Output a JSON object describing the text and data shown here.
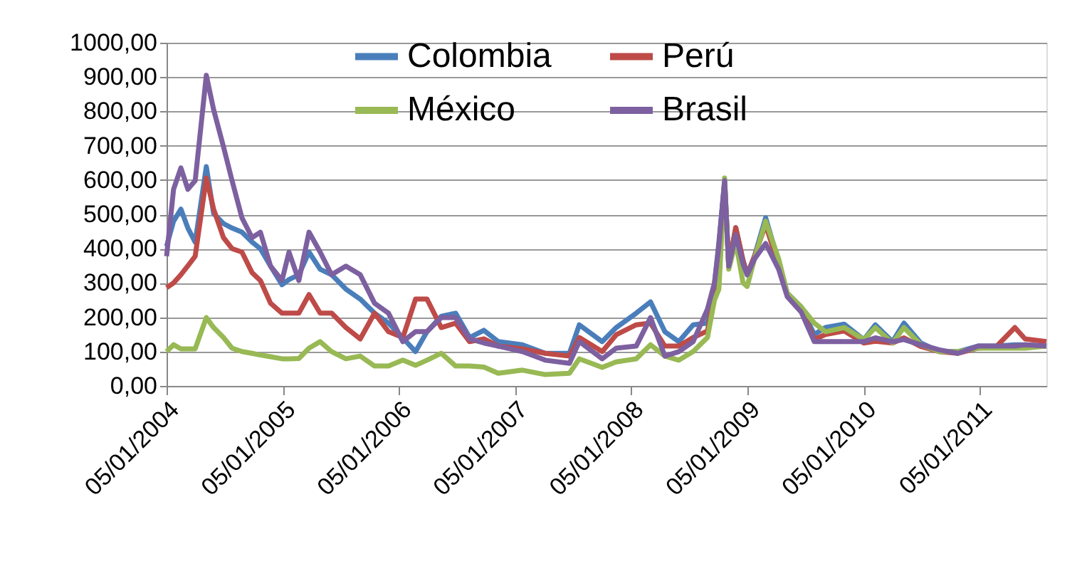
{
  "chart_data": {
    "type": "line",
    "x": [
      "2004-01-05",
      "2004-01-27",
      "2004-02-19",
      "2004-03-12",
      "2004-04-04",
      "2004-05-09",
      "2004-06-01",
      "2004-07-02",
      "2004-07-29",
      "2004-08-29",
      "2004-09-30",
      "2004-10-26",
      "2004-11-27",
      "2005-01-02",
      "2005-01-24",
      "2005-02-24",
      "2005-03-28",
      "2005-05-02",
      "2005-06-07",
      "2005-07-22",
      "2005-09-05",
      "2005-10-20",
      "2005-12-03",
      "2006-01-17",
      "2006-02-26",
      "2006-04-03",
      "2006-05-18",
      "2006-07-02",
      "2006-08-15",
      "2006-09-29",
      "2006-11-13",
      "2007-01-28",
      "2007-04-10",
      "2007-06-25",
      "2007-07-26",
      "2007-10-06",
      "2007-11-19",
      "2008-01-21",
      "2008-03-06",
      "2008-04-20",
      "2008-06-03",
      "2008-07-18",
      "2008-09-01",
      "2008-09-23",
      "2008-10-07",
      "2008-10-25",
      "2008-11-07",
      "2008-11-29",
      "2008-12-22",
      "2009-01-04",
      "2009-01-27",
      "2009-03-03",
      "2009-04-13",
      "2009-05-10",
      "2009-06-23",
      "2009-08-03",
      "2009-09-07",
      "2009-11-05",
      "2010-01-06",
      "2010-02-11",
      "2010-04-06",
      "2010-05-12",
      "2010-07-04",
      "2010-09-01",
      "2010-10-29",
      "2010-12-31",
      "2011-02-27",
      "2011-04-26",
      "2011-05-28",
      "2011-08-03"
    ],
    "series": [
      {
        "name": "Colombia",
        "color": "#4a7ebb",
        "values": [
          407,
          480,
          515,
          460,
          419,
          639,
          502,
          473,
          460,
          448,
          419,
          400,
          349,
          295,
          310,
          324,
          390,
          340,
          324,
          282,
          253,
          212,
          183,
          140,
          100,
          158,
          203,
          212,
          141,
          162,
          129,
          120,
          95,
          95,
          178,
          129,
          170,
          212,
          245,
          158,
          129,
          178,
          183,
          295,
          419,
          598,
          349,
          461,
          365,
          324,
          378,
          490,
          360,
          270,
          230,
          150,
          170,
          180,
          135,
          178,
          129,
          183,
          125,
          100,
          100,
          116,
          116,
          120,
          120,
          116
        ]
      },
      {
        "name": "Perú",
        "color": "#be4b48",
        "values": [
          286,
          300,
          324,
          350,
          378,
          606,
          515,
          432,
          400,
          390,
          330,
          307,
          241,
          212,
          212,
          212,
          266,
          212,
          212,
          170,
          137,
          212,
          158,
          141,
          253,
          253,
          170,
          183,
          129,
          137,
          116,
          108,
          95,
          87,
          141,
          100,
          149,
          178,
          183,
          116,
          116,
          141,
          160,
          266,
          407,
          590,
          349,
          461,
          365,
          324,
          378,
          470,
          349,
          266,
          224,
          135,
          150,
          160,
          125,
          130,
          125,
          140,
          115,
          100,
          95,
          110,
          115,
          170,
          137,
          129
        ]
      },
      {
        "name": "México",
        "color": "#98b954",
        "values": [
          100,
          120,
          108,
          108,
          108,
          199,
          170,
          141,
          110,
          100,
          95,
          90,
          85,
          79,
          79,
          80,
          110,
          129,
          100,
          79,
          87,
          58,
          58,
          75,
          60,
          75,
          95,
          58,
          58,
          55,
          37,
          46,
          33,
          37,
          79,
          54,
          70,
          79,
          120,
          87,
          75,
          100,
          141,
          250,
          282,
          606,
          340,
          420,
          300,
          290,
          370,
          480,
          370,
          270,
          230,
          183,
          158,
          170,
          135,
          170,
          125,
          170,
          120,
          100,
          100,
          110,
          110,
          110,
          110,
          116
        ]
      },
      {
        "name": "Brasil",
        "color": "#7d60a0",
        "values": [
          378,
          573,
          635,
          573,
          598,
          905,
          805,
          697,
          598,
          490,
          432,
          448,
          349,
          307,
          390,
          307,
          448,
          390,
          324,
          349,
          324,
          241,
          212,
          129,
          158,
          158,
          199,
          199,
          137,
          125,
          116,
          100,
          75,
          66,
          129,
          79,
          110,
          116,
          199,
          87,
          100,
          129,
          224,
          300,
          407,
          598,
          349,
          440,
          355,
          324,
          370,
          415,
          340,
          260,
          215,
          129,
          129,
          129,
          129,
          140,
          129,
          135,
          120,
          105,
          95,
          116,
          116,
          116,
          120,
          116
        ]
      }
    ],
    "xlim": [
      "2004-01-05",
      "2011-08-03"
    ],
    "xticks": [
      {
        "value": "2004-01-05",
        "label": "05/01/2004"
      },
      {
        "value": "2005-01-05",
        "label": "05/01/2005"
      },
      {
        "value": "2006-01-05",
        "label": "05/01/2006"
      },
      {
        "value": "2007-01-05",
        "label": "05/01/2007"
      },
      {
        "value": "2008-01-05",
        "label": "05/01/2008"
      },
      {
        "value": "2009-01-05",
        "label": "05/01/2009"
      },
      {
        "value": "2010-01-05",
        "label": "05/01/2010"
      },
      {
        "value": "2011-01-05",
        "label": "05/01/2011"
      }
    ],
    "ylim": [
      0,
      1000
    ],
    "yticks": [
      {
        "value": 0,
        "label": "0,00"
      },
      {
        "value": 100,
        "label": "100,00"
      },
      {
        "value": 200,
        "label": "200,00"
      },
      {
        "value": 300,
        "label": "300,00"
      },
      {
        "value": 400,
        "label": "400,00"
      },
      {
        "value": 500,
        "label": "500,00"
      },
      {
        "value": 600,
        "label": "600,00"
      },
      {
        "value": 700,
        "label": "700,00"
      },
      {
        "value": 800,
        "label": "800,00"
      },
      {
        "value": 900,
        "label": "900,00"
      },
      {
        "value": 1000,
        "label": "1000,00"
      }
    ],
    "grid": "y",
    "legend": "top",
    "line_style": "solid"
  }
}
